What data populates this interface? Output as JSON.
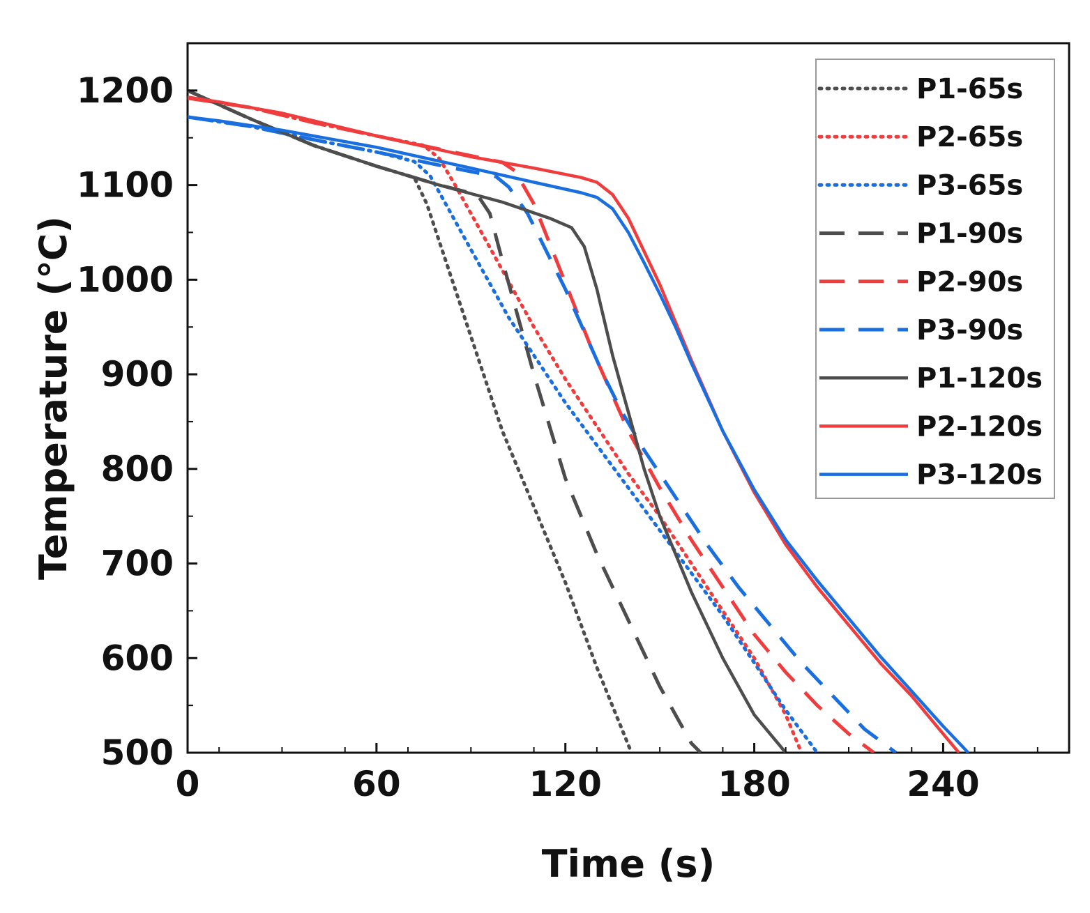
{
  "chart_data": {
    "type": "line",
    "xlabel": "Time (s)",
    "ylabel": "Temperature (℃)",
    "xlim": [
      0,
      280
    ],
    "ylim": [
      500,
      1250
    ],
    "xticks": [
      "0",
      "60",
      "120",
      "180",
      "240"
    ],
    "yticks": [
      "500",
      "600",
      "700",
      "800",
      "900",
      "1000",
      "1100",
      "1200"
    ],
    "xtick_values": [
      0,
      60,
      120,
      180,
      240
    ],
    "ytick_values": [
      500,
      600,
      700,
      800,
      900,
      1000,
      1100,
      1200
    ],
    "legend_position": "top-right",
    "series": [
      {
        "name": "P1-65s",
        "color": "#4d4d4d",
        "style": "dotted",
        "x": [
          0,
          20,
          40,
          60,
          72,
          76,
          80,
          85,
          90,
          95,
          100,
          110,
          120,
          130,
          141
        ],
        "y": [
          1200,
          1170,
          1142,
          1120,
          1108,
          1080,
          1040,
          990,
          940,
          890,
          840,
          760,
          680,
          590,
          500
        ]
      },
      {
        "name": "P2-65s",
        "color": "#f03c3c",
        "style": "dotted",
        "x": [
          0,
          20,
          40,
          60,
          75,
          80,
          85,
          90,
          95,
          100,
          110,
          120,
          130,
          140,
          150,
          160,
          170,
          180,
          190,
          195
        ],
        "y": [
          1192,
          1182,
          1166,
          1152,
          1142,
          1128,
          1100,
          1070,
          1040,
          1010,
          950,
          895,
          845,
          795,
          750,
          700,
          650,
          600,
          540,
          500
        ]
      },
      {
        "name": "P3-65s",
        "color": "#1a6fe0",
        "style": "dotted",
        "x": [
          0,
          20,
          40,
          60,
          72,
          77,
          82,
          87,
          92,
          97,
          102,
          110,
          120,
          130,
          140,
          150,
          160,
          170,
          180,
          190,
          200
        ],
        "y": [
          1172,
          1162,
          1148,
          1135,
          1125,
          1110,
          1080,
          1050,
          1020,
          990,
          960,
          920,
          870,
          825,
          780,
          735,
          690,
          645,
          595,
          545,
          500
        ]
      },
      {
        "name": "P1-90s",
        "color": "#4d4d4d",
        "style": "dashed",
        "x": [
          0,
          20,
          40,
          60,
          80,
          92,
          96,
          100,
          105,
          110,
          115,
          120,
          130,
          140,
          150,
          160,
          163
        ],
        "y": [
          1200,
          1170,
          1142,
          1120,
          1100,
          1090,
          1070,
          1020,
          960,
          900,
          845,
          790,
          710,
          640,
          570,
          510,
          500
        ]
      },
      {
        "name": "P2-90s",
        "color": "#f03c3c",
        "style": "dashed",
        "x": [
          0,
          20,
          40,
          60,
          80,
          100,
          104,
          110,
          116,
          122,
          128,
          134,
          140,
          150,
          160,
          170,
          180,
          190,
          200,
          210,
          218
        ],
        "y": [
          1192,
          1182,
          1166,
          1152,
          1138,
          1124,
          1115,
          1080,
          1030,
          980,
          930,
          885,
          840,
          780,
          725,
          675,
          625,
          585,
          550,
          520,
          500
        ]
      },
      {
        "name": "P3-90s",
        "color": "#1a6fe0",
        "style": "dashed",
        "x": [
          0,
          20,
          40,
          60,
          80,
          98,
          102,
          108,
          114,
          120,
          126,
          132,
          138,
          145,
          155,
          165,
          175,
          185,
          195,
          205,
          215,
          225
        ],
        "y": [
          1172,
          1162,
          1148,
          1135,
          1121,
          1109,
          1098,
          1070,
          1030,
          990,
          945,
          900,
          860,
          820,
          770,
          720,
          675,
          635,
          595,
          560,
          525,
          500
        ]
      },
      {
        "name": "P1-120s",
        "color": "#4d4d4d",
        "style": "solid",
        "x": [
          0,
          20,
          40,
          60,
          80,
          100,
          115,
          122,
          126,
          130,
          135,
          140,
          145,
          150,
          160,
          170,
          180,
          190
        ],
        "y": [
          1200,
          1170,
          1142,
          1120,
          1100,
          1082,
          1065,
          1055,
          1035,
          990,
          920,
          860,
          800,
          750,
          670,
          600,
          540,
          500
        ]
      },
      {
        "name": "P2-120s",
        "color": "#f03c3c",
        "style": "solid",
        "x": [
          0,
          10,
          30,
          60,
          90,
          110,
          125,
          130,
          135,
          140,
          145,
          150,
          155,
          160,
          170,
          180,
          190,
          200,
          210,
          220,
          230,
          240,
          245
        ],
        "y": [
          1193,
          1188,
          1176,
          1152,
          1130,
          1118,
          1108,
          1103,
          1090,
          1065,
          1030,
          995,
          955,
          915,
          840,
          775,
          720,
          675,
          635,
          595,
          560,
          520,
          500
        ]
      },
      {
        "name": "P3-120s",
        "color": "#1a6fe0",
        "style": "solid",
        "x": [
          0,
          10,
          30,
          60,
          90,
          110,
          125,
          130,
          135,
          140,
          145,
          150,
          155,
          160,
          170,
          180,
          190,
          200,
          210,
          220,
          230,
          240,
          248
        ],
        "y": [
          1172,
          1168,
          1158,
          1140,
          1118,
          1103,
          1092,
          1087,
          1075,
          1050,
          1018,
          985,
          950,
          912,
          840,
          778,
          725,
          682,
          642,
          602,
          565,
          528,
          500
        ]
      }
    ]
  }
}
